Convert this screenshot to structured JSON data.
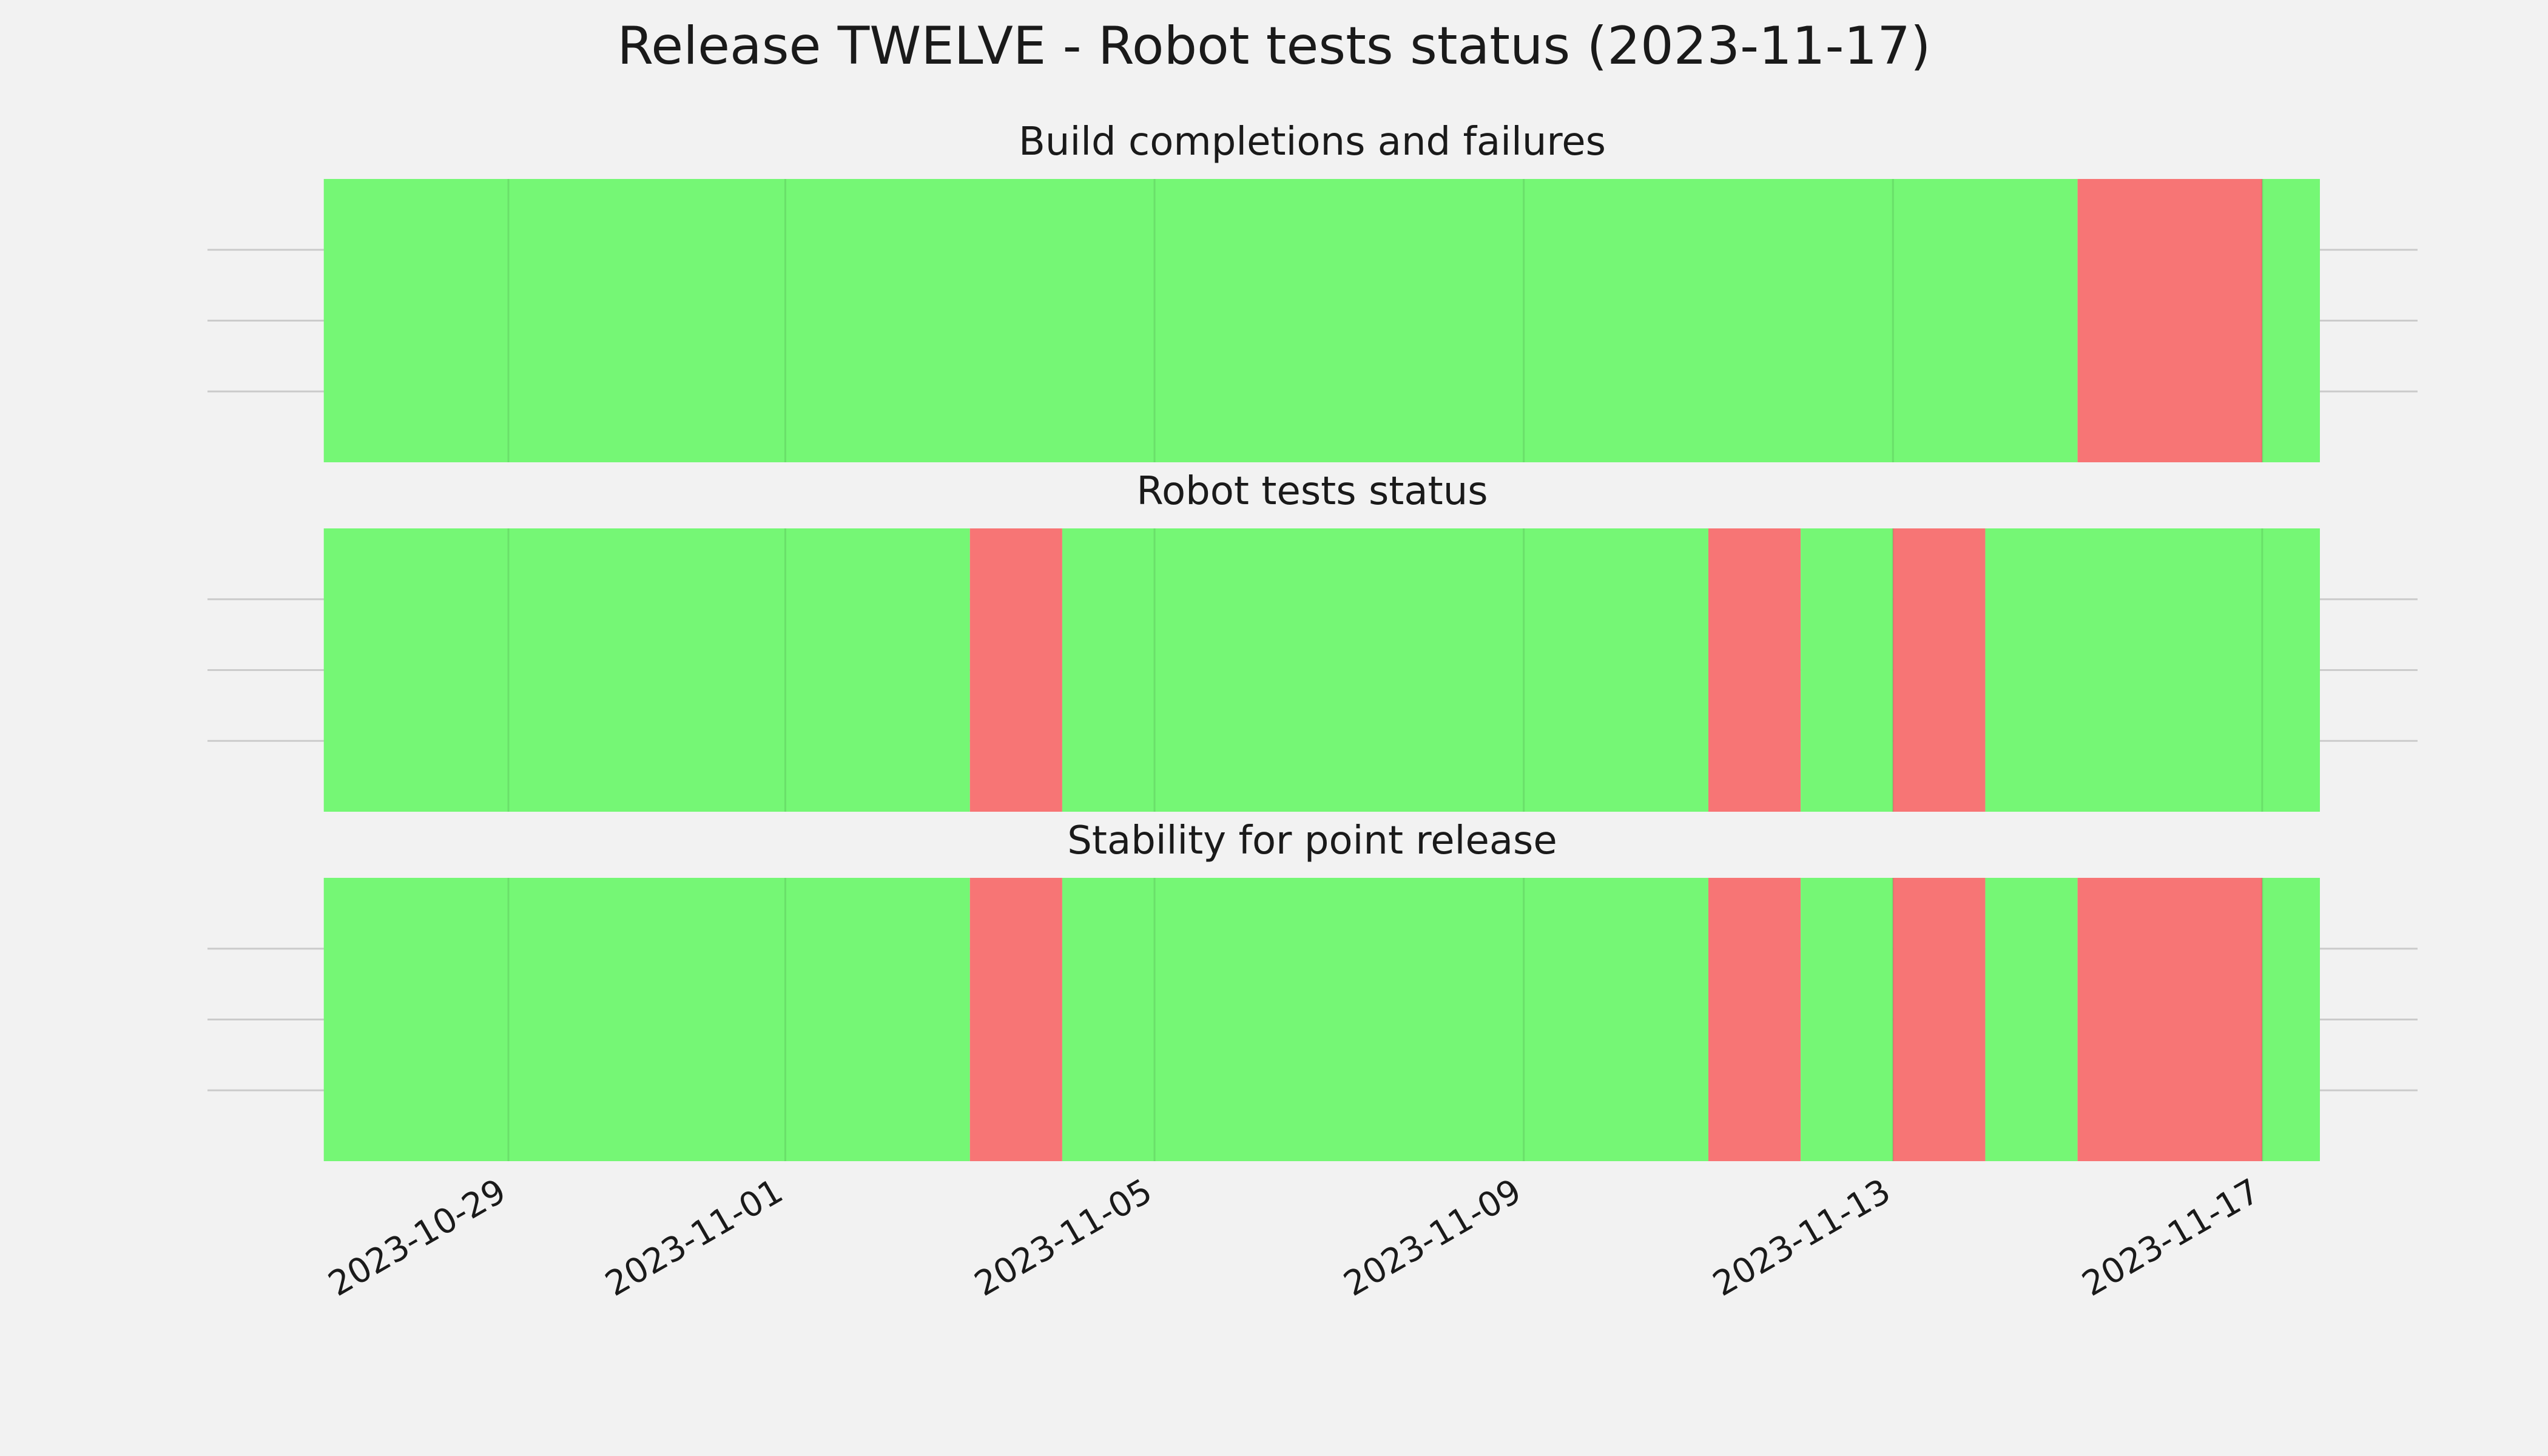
{
  "chart_data": [
    {
      "type": "timeline",
      "title": "Build completions and failures",
      "segments": [
        {
          "start": "2023-10-27",
          "end": "2023-11-15",
          "status": "pass"
        },
        {
          "start": "2023-11-15",
          "end": "2023-11-17",
          "status": "fail"
        },
        {
          "start": "2023-11-17",
          "end": "2023-11-17T15:00",
          "status": "pass"
        }
      ]
    },
    {
      "type": "timeline",
      "title": "Robot tests status",
      "segments": [
        {
          "start": "2023-10-27",
          "end": "2023-11-03",
          "status": "pass"
        },
        {
          "start": "2023-11-03",
          "end": "2023-11-04",
          "status": "fail"
        },
        {
          "start": "2023-11-04",
          "end": "2023-11-11",
          "status": "pass"
        },
        {
          "start": "2023-11-11",
          "end": "2023-11-12",
          "status": "fail"
        },
        {
          "start": "2023-11-12",
          "end": "2023-11-13",
          "status": "pass"
        },
        {
          "start": "2023-11-13",
          "end": "2023-11-14",
          "status": "fail"
        },
        {
          "start": "2023-11-14",
          "end": "2023-11-17T15:00",
          "status": "pass"
        }
      ]
    },
    {
      "type": "timeline",
      "title": "Stability for point release",
      "segments": [
        {
          "start": "2023-10-27",
          "end": "2023-11-03",
          "status": "pass"
        },
        {
          "start": "2023-11-03",
          "end": "2023-11-04",
          "status": "fail"
        },
        {
          "start": "2023-11-04",
          "end": "2023-11-11",
          "status": "pass"
        },
        {
          "start": "2023-11-11",
          "end": "2023-11-12",
          "status": "fail"
        },
        {
          "start": "2023-11-12",
          "end": "2023-11-13",
          "status": "pass"
        },
        {
          "start": "2023-11-13",
          "end": "2023-11-14",
          "status": "fail"
        },
        {
          "start": "2023-11-14",
          "end": "2023-11-15",
          "status": "pass"
        },
        {
          "start": "2023-11-15",
          "end": "2023-11-17",
          "status": "fail"
        },
        {
          "start": "2023-11-17",
          "end": "2023-11-17T15:00",
          "status": "pass"
        }
      ]
    }
  ],
  "figure": {
    "title": "Release TWELVE - Robot tests status (2023-11-17)",
    "x_ticks": [
      "2023-10-29",
      "2023-11-01",
      "2023-11-05",
      "2023-11-09",
      "2023-11-13",
      "2023-11-17"
    ],
    "xlim": [
      "2023-10-26T19:00",
      "2023-11-17T15:00"
    ],
    "grid": true,
    "colors": {
      "pass": "#75f775",
      "fail": "#f77575",
      "background": "#f2f2f2",
      "grid": "#cbcbcb"
    }
  }
}
